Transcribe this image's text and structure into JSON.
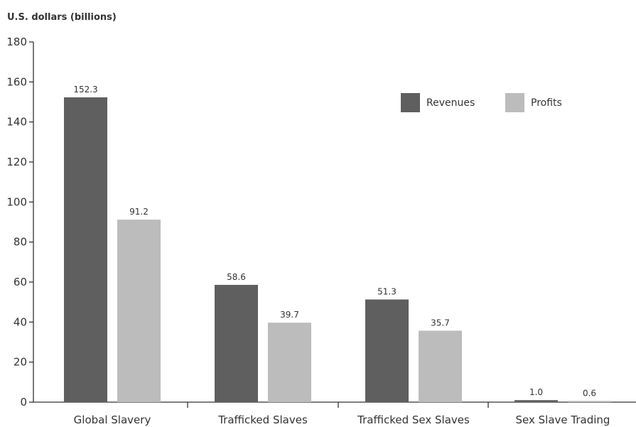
{
  "chart_data": {
    "type": "bar",
    "unit_label": "U.S. dollars (billions)",
    "categories": [
      "Global Slavery",
      "Trafficked Slaves",
      "Trafficked Sex Slaves",
      "Sex Slave Trading"
    ],
    "series": [
      {
        "name": "Revenues",
        "color": "#5f5f5f",
        "values": [
          152.3,
          58.6,
          51.3,
          1.0
        ],
        "value_labels": [
          "152.3",
          "58.6",
          "51.3",
          "1.0"
        ]
      },
      {
        "name": "Profits",
        "color": "#bcbcbc",
        "values": [
          91.2,
          39.7,
          35.7,
          0.6
        ],
        "value_labels": [
          "91.2",
          "39.7",
          "35.7",
          "0.6"
        ]
      }
    ],
    "ylim": [
      0,
      180
    ],
    "yticks": [
      0,
      20,
      40,
      60,
      80,
      100,
      120,
      140,
      160,
      180
    ],
    "grid": false,
    "legend_position": "top-right"
  }
}
